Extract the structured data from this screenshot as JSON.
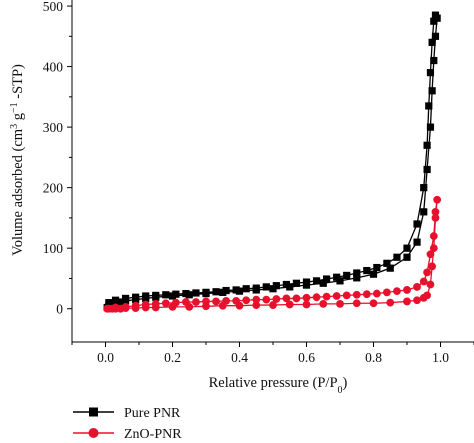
{
  "chart_data": {
    "type": "line",
    "xlabel": "Relative pressure (P/P",
    "xlabel_sub": "0",
    "xlabel_tail": ")",
    "ylabel_parts": [
      "Volume adsorbed (cm",
      "3",
      " g",
      "−1",
      " -STP)"
    ],
    "xlim": [
      -0.1,
      1.1
    ],
    "ylim": [
      -55,
      510
    ],
    "x_ticks": [
      0.0,
      0.2,
      0.4,
      0.6,
      0.8,
      1.0
    ],
    "x_tick_labels": [
      "0.0",
      "0.2",
      "0.4",
      "0.6",
      "0.8",
      "1.0"
    ],
    "y_ticks": [
      0,
      100,
      200,
      300,
      400,
      500
    ],
    "y_tick_labels": [
      "0",
      "100",
      "200",
      "300",
      "400",
      "500"
    ],
    "legend_position": "bottom-left",
    "series": [
      {
        "name": "Pure PNR",
        "color": "#000000",
        "marker": "square",
        "x": [
          0.005,
          0.01,
          0.02,
          0.03,
          0.045,
          0.06,
          0.09,
          0.12,
          0.15,
          0.2,
          0.25,
          0.3,
          0.35,
          0.4,
          0.45,
          0.5,
          0.55,
          0.6,
          0.65,
          0.7,
          0.75,
          0.8,
          0.85,
          0.9,
          0.93,
          0.95,
          0.96,
          0.97,
          0.975,
          0.98,
          0.985,
          0.99,
          0.985,
          0.98,
          0.975,
          0.97,
          0.965,
          0.96,
          0.95,
          0.93,
          0.9,
          0.87,
          0.84,
          0.81,
          0.78,
          0.75,
          0.72,
          0.69,
          0.66,
          0.63,
          0.6,
          0.57,
          0.54,
          0.51,
          0.48,
          0.45,
          0.42,
          0.39,
          0.36,
          0.33,
          0.3,
          0.27,
          0.24,
          0.21,
          0.18,
          0.15,
          0.12,
          0.09,
          0.06,
          0.03,
          0.01
        ],
        "y": [
          2,
          5,
          7,
          9,
          11,
          13,
          15,
          17,
          19,
          21,
          23,
          25,
          27,
          29,
          31,
          33,
          36,
          39,
          42,
          46,
          51,
          57,
          67,
          85,
          110,
          160,
          230,
          300,
          360,
          410,
          450,
          480,
          485,
          475,
          440,
          390,
          335,
          270,
          200,
          140,
          100,
          85,
          75,
          68,
          63,
          59,
          55,
          52,
          49,
          46,
          44,
          42,
          40,
          38,
          36,
          34,
          33,
          31,
          30,
          28,
          27,
          26,
          25,
          24,
          23,
          22,
          21,
          19,
          17,
          14,
          10
        ]
      },
      {
        "name": "ZnO-PNR",
        "color": "#e8112d",
        "marker": "circle",
        "x": [
          0.005,
          0.01,
          0.02,
          0.03,
          0.045,
          0.06,
          0.09,
          0.12,
          0.15,
          0.2,
          0.25,
          0.3,
          0.35,
          0.4,
          0.45,
          0.5,
          0.55,
          0.6,
          0.65,
          0.7,
          0.75,
          0.8,
          0.85,
          0.9,
          0.93,
          0.95,
          0.96,
          0.97,
          0.975,
          0.98,
          0.985,
          0.99,
          0.985,
          0.98,
          0.97,
          0.96,
          0.95,
          0.93,
          0.9,
          0.87,
          0.84,
          0.81,
          0.78,
          0.75,
          0.72,
          0.69,
          0.66,
          0.63,
          0.6,
          0.57,
          0.54,
          0.51,
          0.48,
          0.45,
          0.42,
          0.39,
          0.36,
          0.33,
          0.3,
          0.27,
          0.24,
          0.21,
          0.18,
          0.15,
          0.12,
          0.09,
          0.06,
          0.03
        ],
        "y": [
          0,
          0,
          0,
          0,
          0,
          1,
          1,
          2,
          2,
          3,
          3,
          4,
          5,
          5,
          6,
          6,
          7,
          7,
          8,
          8,
          9,
          9,
          10,
          12,
          14,
          18,
          22,
          40,
          70,
          100,
          150,
          180,
          160,
          120,
          90,
          60,
          45,
          36,
          31,
          29,
          27,
          25,
          24,
          23,
          22,
          21,
          20,
          19,
          18,
          17,
          17,
          16,
          15,
          15,
          14,
          13,
          13,
          12,
          12,
          11,
          11,
          10,
          9,
          8,
          7,
          5,
          3,
          2
        ]
      }
    ]
  }
}
